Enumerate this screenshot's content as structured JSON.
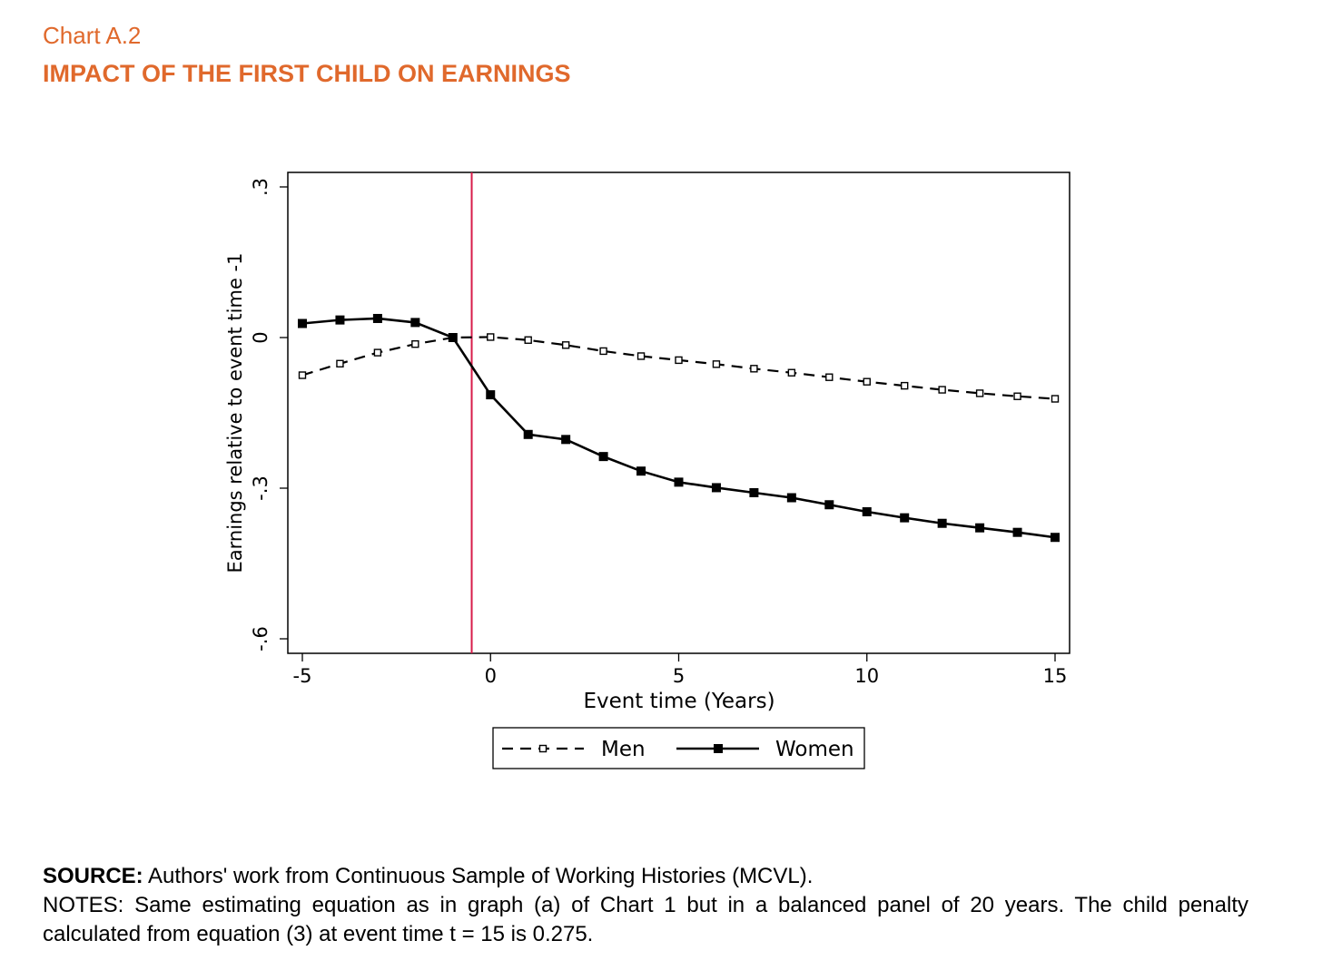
{
  "header": {
    "chart_number": "Chart A.2",
    "title": "IMPACT OF THE FIRST CHILD ON EARNINGS"
  },
  "colors": {
    "heading": "#e0692c",
    "event_line": "#d81b4a",
    "series": "#000000"
  },
  "chart_data": {
    "type": "line",
    "title": "",
    "xlabel": "Event time (Years)",
    "ylabel": "Earnings relative to event time -1",
    "xlim": [
      -5,
      15
    ],
    "ylim": [
      -0.6,
      0.3
    ],
    "x_ticks": [
      -5,
      0,
      5,
      10,
      15
    ],
    "x_tick_labels": [
      "-5",
      "0",
      "5",
      "10",
      "15"
    ],
    "y_ticks": [
      -0.6,
      -0.3,
      0,
      0.3
    ],
    "y_tick_labels": [
      "-.6",
      "-.3",
      "0",
      ".3"
    ],
    "event_line_x": -0.5,
    "grid": false,
    "legend_position": "bottom",
    "x": [
      -5,
      -4,
      -3,
      -2,
      -1,
      0,
      1,
      2,
      3,
      4,
      5,
      6,
      7,
      8,
      9,
      10,
      11,
      12,
      13,
      14,
      15
    ],
    "series": [
      {
        "name": "Men",
        "style": "dashed-hollow-square",
        "values": [
          -0.075,
          -0.052,
          -0.03,
          -0.013,
          0.0,
          0.001,
          -0.005,
          -0.015,
          -0.027,
          -0.037,
          -0.045,
          -0.053,
          -0.062,
          -0.07,
          -0.079,
          -0.088,
          -0.096,
          -0.104,
          -0.111,
          -0.117,
          -0.122
        ]
      },
      {
        "name": "Women",
        "style": "solid-filled-square",
        "values": [
          0.028,
          0.035,
          0.038,
          0.03,
          0.0,
          -0.114,
          -0.193,
          -0.203,
          -0.237,
          -0.266,
          -0.288,
          -0.299,
          -0.309,
          -0.319,
          -0.333,
          -0.347,
          -0.359,
          -0.37,
          -0.379,
          -0.388,
          -0.398
        ]
      }
    ]
  },
  "footer": {
    "source_label": "SOURCE:",
    "source_text": " Authors' work from Continuous Sample of Working Histories (MCVL).",
    "notes_text": "NOTES: Same estimating equation as in graph (a) of Chart 1 but in a balanced panel of 20 years. The child penalty calculated from equation (3) at event time t = 15 is 0.275."
  }
}
